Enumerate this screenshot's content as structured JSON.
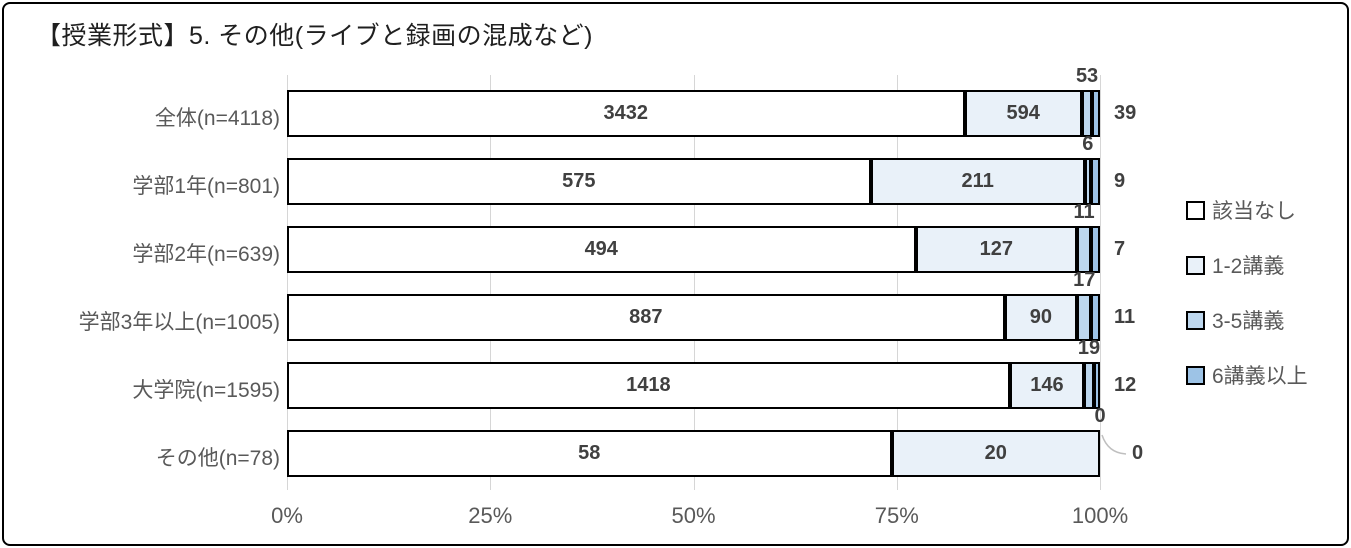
{
  "title": "【授業形式】5. その他(ライブと録画の混成など)",
  "chart_data": {
    "type": "bar",
    "variant": "100%-stacked-horizontal",
    "title": "【授業形式】5. その他(ライブと録画の混成など)",
    "categories": [
      "全体(n=4118)",
      "学部1年(n=801)",
      "学部2年(n=639)",
      "学部3年以上(n=1005)",
      "大学院(n=1595)",
      "その他(n=78)"
    ],
    "series": [
      {
        "name": "該当なし",
        "color": "#ffffff",
        "values": [
          3432,
          575,
          494,
          887,
          1418,
          58
        ]
      },
      {
        "name": "1-2講義",
        "color": "#e9f1f9",
        "values": [
          594,
          211,
          127,
          90,
          146,
          20
        ]
      },
      {
        "name": "3-5講義",
        "color": "#bdd7ee",
        "values": [
          53,
          6,
          11,
          17,
          19,
          0
        ]
      },
      {
        "name": "6講義以上",
        "color": "#9dc3e6",
        "values": [
          39,
          9,
          7,
          11,
          12,
          0
        ]
      }
    ],
    "row_totals": [
      4118,
      801,
      639,
      1005,
      1595,
      78
    ],
    "xlabel": "",
    "ylabel": "",
    "x_axis": {
      "ticks": [
        "0%",
        "25%",
        "50%",
        "75%",
        "100%"
      ],
      "range_percent": [
        0,
        100
      ],
      "gridlines": true
    },
    "legend": {
      "position": "right",
      "items": [
        "該当なし",
        "1-2講義",
        "3-5講義",
        "6講義以上"
      ]
    },
    "label_rules": "series 0-1 labeled inside segments; series 2 labeled above bar; series 3 labeled right of bar; last category shows 0 labels with leader line",
    "colors": {
      "grid": "#d6d6d6",
      "bar_border": "#000000",
      "value_text": "#404040",
      "axis_text": "#595959",
      "frame_border": "#000000"
    }
  }
}
